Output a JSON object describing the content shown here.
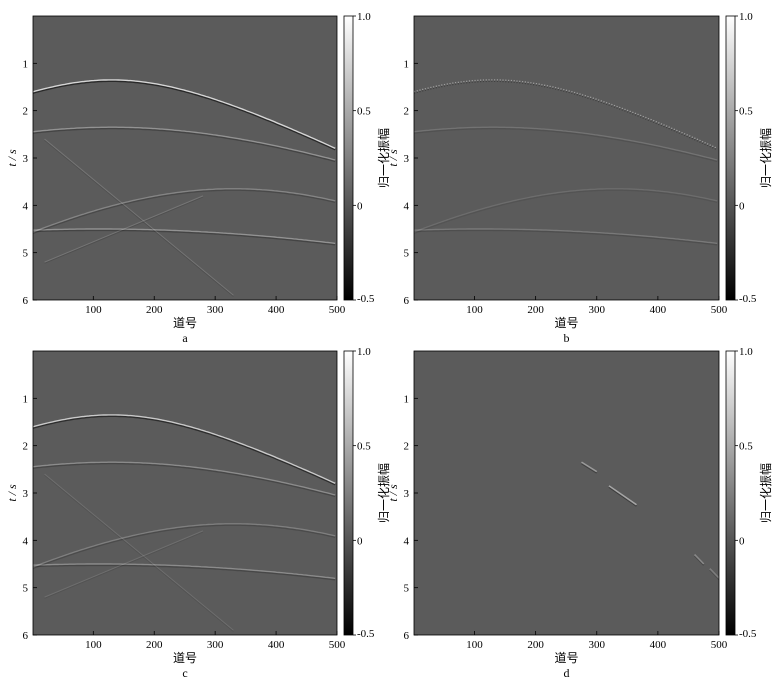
{
  "chart_data": [
    {
      "type": "heatmap",
      "panel_label": "a",
      "xlabel": "道号",
      "ylabel": "t / s",
      "xlim": [
        1,
        500
      ],
      "ylim": [
        0,
        6
      ],
      "y_inverted": true,
      "xticks": [
        100,
        200,
        300,
        400,
        500
      ],
      "yticks": [
        1,
        2,
        3,
        4,
        5,
        6
      ],
      "colorbar": {
        "label": "归一化振幅",
        "range": [
          -0.5,
          1.0
        ],
        "ticks": [
          1.0,
          0.5,
          0,
          -0.5
        ],
        "tick_labels": [
          "1.0",
          "0.5",
          "0",
          "-0.5"
        ],
        "colormap": "gray"
      },
      "background_value": 0,
      "events": [
        {
          "kind": "hyperbola",
          "apex_trace": 130,
          "t0": 1.35,
          "v": 150,
          "strength": 1.0
        },
        {
          "kind": "hyperbola",
          "apex_trace": 130,
          "t0": 2.35,
          "v": 190,
          "strength": 0.45
        },
        {
          "kind": "hyperbola",
          "apex_trace": 110,
          "t0": 4.5,
          "v": 230,
          "strength": 0.45
        },
        {
          "kind": "hyperbola",
          "apex_trace": 330,
          "t0": 3.65,
          "v": 120,
          "strength": 0.35
        },
        {
          "kind": "line",
          "x0": 20,
          "t0": 2.6,
          "x1": 330,
          "t1": 5.9,
          "strength": 0.2
        },
        {
          "kind": "line",
          "x0": 20,
          "t0": 5.2,
          "x1": 280,
          "t1": 3.8,
          "strength": 0.2
        }
      ]
    },
    {
      "type": "heatmap",
      "panel_label": "b",
      "xlabel": "道号",
      "ylabel": "t / s",
      "xlim": [
        1,
        500
      ],
      "ylim": [
        0,
        6
      ],
      "y_inverted": true,
      "xticks": [
        100,
        200,
        300,
        400,
        500
      ],
      "yticks": [
        1,
        2,
        3,
        4,
        5,
        6
      ],
      "colorbar": {
        "label": "归一化振幅",
        "range": [
          -0.5,
          1.0
        ],
        "ticks": [
          1.0,
          0.5,
          0,
          -0.5
        ],
        "tick_labels": [
          "1.0",
          "0.5",
          "0",
          "-0.5"
        ],
        "colormap": "gray"
      },
      "background_value": 0,
      "events": [
        {
          "kind": "hyperbola",
          "apex_trace": 130,
          "t0": 1.35,
          "v": 150,
          "strength": 0.55,
          "dotted": true
        },
        {
          "kind": "hyperbola",
          "apex_trace": 130,
          "t0": 2.35,
          "v": 190,
          "strength": 0.2
        },
        {
          "kind": "hyperbola",
          "apex_trace": 110,
          "t0": 4.5,
          "v": 230,
          "strength": 0.25
        },
        {
          "kind": "hyperbola",
          "apex_trace": 330,
          "t0": 3.65,
          "v": 120,
          "strength": 0.15
        }
      ]
    },
    {
      "type": "heatmap",
      "panel_label": "c",
      "xlabel": "道号",
      "ylabel": "t / s",
      "xlim": [
        1,
        500
      ],
      "ylim": [
        0,
        6
      ],
      "y_inverted": true,
      "xticks": [
        100,
        200,
        300,
        400,
        500
      ],
      "yticks": [
        1,
        2,
        3,
        4,
        5,
        6
      ],
      "colorbar": {
        "label": "归一化振幅",
        "range": [
          -0.5,
          1.0
        ],
        "ticks": [
          1.0,
          0.5,
          0,
          -0.5
        ],
        "tick_labels": [
          "1.0",
          "0.5",
          "0",
          "-0.5"
        ],
        "colormap": "gray"
      },
      "background_value": 0,
      "events": [
        {
          "kind": "hyperbola",
          "apex_trace": 130,
          "t0": 1.35,
          "v": 150,
          "strength": 0.9
        },
        {
          "kind": "hyperbola",
          "apex_trace": 130,
          "t0": 2.35,
          "v": 190,
          "strength": 0.4
        },
        {
          "kind": "hyperbola",
          "apex_trace": 110,
          "t0": 4.5,
          "v": 230,
          "strength": 0.4
        },
        {
          "kind": "hyperbola",
          "apex_trace": 330,
          "t0": 3.65,
          "v": 120,
          "strength": 0.3
        },
        {
          "kind": "line",
          "x0": 20,
          "t0": 2.6,
          "x1": 330,
          "t1": 5.9,
          "strength": 0.15
        },
        {
          "kind": "line",
          "x0": 20,
          "t0": 5.2,
          "x1": 280,
          "t1": 3.8,
          "strength": 0.15
        }
      ]
    },
    {
      "type": "heatmap",
      "panel_label": "d",
      "xlabel": "道号",
      "ylabel": "t / s",
      "xlim": [
        1,
        500
      ],
      "ylim": [
        0,
        6
      ],
      "y_inverted": true,
      "xticks": [
        100,
        200,
        300,
        400,
        500
      ],
      "yticks": [
        1,
        2,
        3,
        4,
        5,
        6
      ],
      "colorbar": {
        "label": "归一化振幅",
        "range": [
          -0.5,
          1.0
        ],
        "ticks": [
          1.0,
          0.5,
          0,
          -0.5
        ],
        "tick_labels": [
          "1.0",
          "0.5",
          "0",
          "-0.5"
        ],
        "colormap": "gray"
      },
      "background_value": 0,
      "events": [
        {
          "kind": "segment",
          "x0": 275,
          "t0": 2.35,
          "x1": 300,
          "t1": 2.55,
          "strength": 0.5
        },
        {
          "kind": "segment",
          "x0": 320,
          "t0": 2.85,
          "x1": 365,
          "t1": 3.25,
          "strength": 0.6
        },
        {
          "kind": "segment",
          "x0": 460,
          "t0": 4.3,
          "x1": 475,
          "t1": 4.5,
          "strength": 0.4
        },
        {
          "kind": "segment",
          "x0": 485,
          "t0": 4.6,
          "x1": 500,
          "t1": 4.8,
          "strength": 0.3
        }
      ]
    }
  ]
}
